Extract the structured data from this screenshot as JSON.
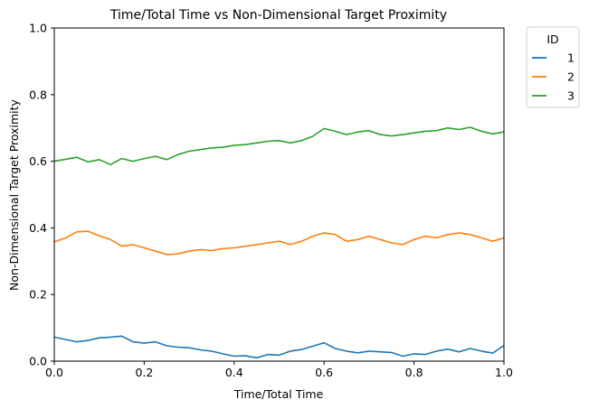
{
  "chart_data": {
    "type": "line",
    "title": "Time/Total Time vs Non-Dimensional Target Proximity",
    "xlabel": "Time/Total Time",
    "ylabel": "Non-Dimensional Target Proximity",
    "xlim": [
      0,
      1
    ],
    "ylim": [
      0,
      1
    ],
    "xticks": [
      "0.0",
      "0.2",
      "0.4",
      "0.6",
      "0.8",
      "1.0"
    ],
    "yticks": [
      "0.0",
      "0.2",
      "0.4",
      "0.6",
      "0.8",
      "1.0"
    ],
    "grid": false,
    "legend": {
      "title": "ID",
      "placement": "outside-top-right"
    },
    "x": [
      0.0,
      0.025,
      0.05,
      0.075,
      0.1,
      0.125,
      0.15,
      0.175,
      0.2,
      0.225,
      0.25,
      0.275,
      0.3,
      0.325,
      0.35,
      0.375,
      0.4,
      0.425,
      0.45,
      0.475,
      0.5,
      0.525,
      0.55,
      0.575,
      0.6,
      0.625,
      0.65,
      0.675,
      0.7,
      0.725,
      0.75,
      0.775,
      0.8,
      0.825,
      0.85,
      0.875,
      0.9,
      0.925,
      0.95,
      0.975,
      1.0
    ],
    "series": [
      {
        "name": "1",
        "color": "#1f77b4",
        "values": [
          0.072,
          0.065,
          0.058,
          0.062,
          0.07,
          0.072,
          0.075,
          0.058,
          0.054,
          0.058,
          0.046,
          0.042,
          0.04,
          0.034,
          0.03,
          0.022,
          0.015,
          0.016,
          0.01,
          0.02,
          0.018,
          0.03,
          0.035,
          0.045,
          0.055,
          0.038,
          0.03,
          0.025,
          0.03,
          0.028,
          0.026,
          0.015,
          0.022,
          0.02,
          0.03,
          0.036,
          0.028,
          0.038,
          0.03,
          0.024,
          0.047
        ]
      },
      {
        "name": "2",
        "color": "#ff7f0e",
        "values": [
          0.358,
          0.37,
          0.388,
          0.39,
          0.376,
          0.365,
          0.345,
          0.35,
          0.34,
          0.33,
          0.32,
          0.322,
          0.33,
          0.335,
          0.332,
          0.338,
          0.34,
          0.345,
          0.35,
          0.355,
          0.36,
          0.35,
          0.36,
          0.375,
          0.385,
          0.38,
          0.36,
          0.365,
          0.375,
          0.365,
          0.355,
          0.35,
          0.365,
          0.375,
          0.37,
          0.38,
          0.385,
          0.38,
          0.37,
          0.36,
          0.37
        ]
      },
      {
        "name": "3",
        "color": "#2ca02c",
        "values": [
          0.6,
          0.606,
          0.612,
          0.598,
          0.605,
          0.59,
          0.608,
          0.6,
          0.608,
          0.615,
          0.605,
          0.62,
          0.63,
          0.635,
          0.64,
          0.642,
          0.648,
          0.65,
          0.655,
          0.66,
          0.662,
          0.655,
          0.662,
          0.675,
          0.698,
          0.69,
          0.68,
          0.688,
          0.692,
          0.68,
          0.676,
          0.68,
          0.685,
          0.69,
          0.692,
          0.7,
          0.695,
          0.702,
          0.69,
          0.682,
          0.688
        ]
      }
    ]
  }
}
